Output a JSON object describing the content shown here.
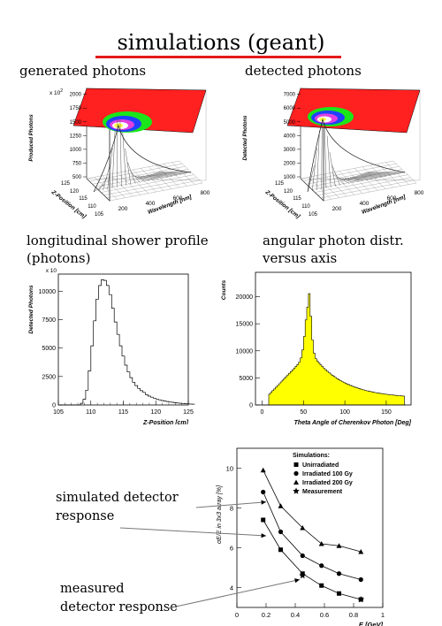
{
  "title": "simulations (geant)",
  "captions": {
    "generated": "generated photons",
    "detected": "detected photons",
    "long_line1": "longitudinal shower profile",
    "long_line2": "(photons)",
    "ang_line1": "angular photon distr.",
    "ang_line2": "versus axis"
  },
  "annotations": {
    "sim_line1": "simulated detector",
    "sim_line2": "response",
    "meas_line1": "measured",
    "meas_line2": "detector response"
  },
  "colors": {
    "accent": "#e31a1a",
    "fill_yellow": "#ffff00",
    "surface_red": "#ff2020"
  },
  "chart_data": [
    {
      "type": "surface3d",
      "ylabel": "Produced Photons",
      "scale_label": "x 10",
      "scale_exp": "2",
      "zticks": [
        "500",
        "750",
        "1000",
        "1250",
        "1500",
        "1750",
        "2000"
      ],
      "ylabel_depth": "Z-Position [cm]",
      "depth_ticks": [
        "105",
        "110",
        "115",
        "120",
        "125"
      ],
      "xlabel": "Wavelength [nm]",
      "xticks": [
        "200",
        "400",
        "600",
        "800"
      ]
    },
    {
      "type": "surface3d",
      "ylabel": "Detected Photons",
      "zticks": [
        "1000",
        "2000",
        "3000",
        "4000",
        "5000",
        "6000",
        "7000"
      ],
      "ylabel_depth": "Z-Position [cm]",
      "depth_ticks": [
        "105",
        "110",
        "115",
        "120",
        "125"
      ],
      "xlabel": "Wavelength [nm]",
      "xticks": [
        "200",
        "400",
        "600",
        "800"
      ]
    },
    {
      "type": "histogram",
      "ylabel": "Detected Photons",
      "scale_label": "x 10",
      "xlabel": "Z-Position [cm]",
      "xlim": [
        105,
        125
      ],
      "ylim": [
        0,
        11500
      ],
      "xticks": [
        "105",
        "110",
        "115",
        "120",
        "125"
      ],
      "yticks": [
        "0",
        "2500",
        "5000",
        "7500",
        "10000"
      ],
      "bin_width": 0.4,
      "x_start": 106,
      "values": [
        0,
        0,
        0,
        0,
        0,
        0,
        150,
        500,
        1300,
        3000,
        5200,
        7400,
        9300,
        10500,
        11000,
        10950,
        10500,
        9700,
        8500,
        7300,
        6200,
        5200,
        4300,
        3500,
        2900,
        2400,
        2000,
        1700,
        1450,
        1250,
        1100,
        900,
        780,
        680,
        600,
        520,
        450,
        390,
        340,
        300,
        260,
        230,
        200,
        170,
        150,
        130,
        110,
        90,
        80,
        70
      ]
    },
    {
      "type": "histogram",
      "ylabel": "Counts",
      "xlabel": "Theta Angle of Cherenkov Photon [Deg]",
      "xlim": [
        -8,
        180
      ],
      "ylim": [
        0,
        24500
      ],
      "xticks": [
        "0",
        "50",
        "100",
        "150"
      ],
      "yticks": [
        "0",
        "5000",
        "10000",
        "15000",
        "20000"
      ],
      "fill": "#ffff00",
      "peak": {
        "x": 55,
        "value": 22000
      }
    },
    {
      "type": "line",
      "ylabel": "σE/E in 3x3 array [%]",
      "xlabel": "E [GeV]",
      "xlim": [
        0,
        1
      ],
      "ylim": [
        3,
        11
      ],
      "xticks": [
        "0",
        "0.2",
        "0.4",
        "0.6",
        "0.8",
        "1"
      ],
      "yticks": [
        "4",
        "6",
        "8",
        "10"
      ],
      "legend_title": "Simulations:",
      "series": [
        {
          "name": "Unirradiated",
          "marker": "square",
          "x": [
            0.18,
            0.3,
            0.45,
            0.58,
            0.7,
            0.85
          ],
          "y": [
            7.4,
            5.9,
            4.7,
            4.1,
            3.7,
            3.4
          ]
        },
        {
          "name": "Irradiated 100 Gy",
          "marker": "circle",
          "x": [
            0.18,
            0.3,
            0.45,
            0.58,
            0.7,
            0.85
          ],
          "y": [
            8.8,
            6.8,
            5.6,
            5.1,
            4.7,
            4.4
          ]
        },
        {
          "name": "Irradiated 200 Gy",
          "marker": "triangle",
          "x": [
            0.18,
            0.3,
            0.45,
            0.58,
            0.7,
            0.85
          ],
          "y": [
            9.9,
            8.1,
            7.0,
            6.2,
            6.1,
            5.8
          ]
        },
        {
          "name": "Measurement",
          "marker": "star",
          "x": [
            0.45,
            0.85
          ],
          "y": [
            4.6,
            3.4
          ]
        }
      ]
    }
  ]
}
